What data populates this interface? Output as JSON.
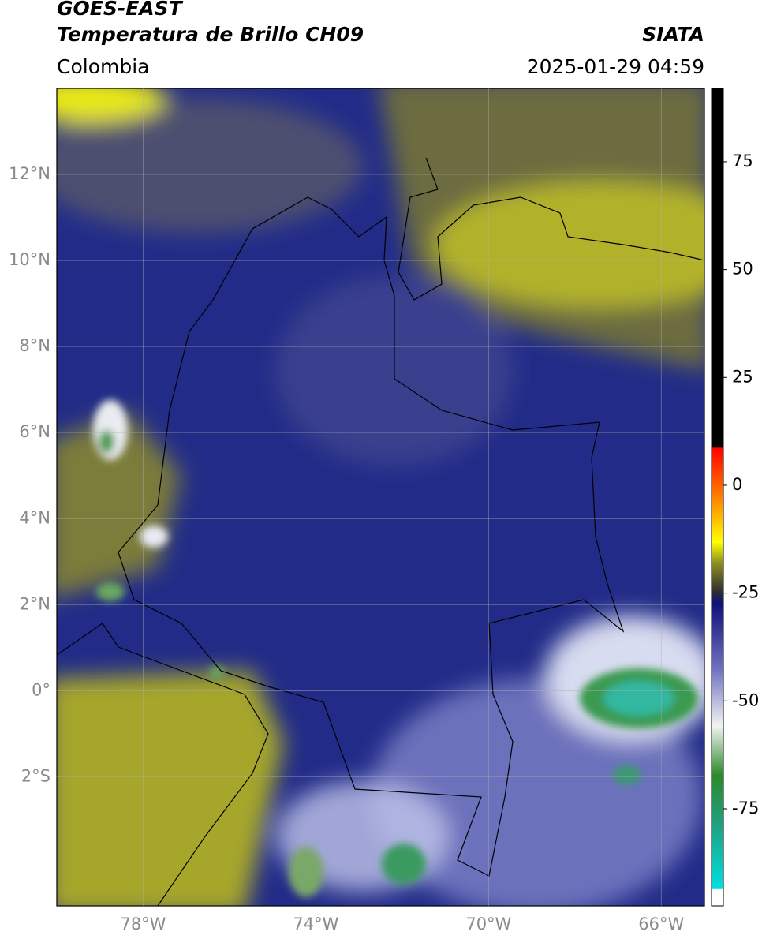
{
  "header": {
    "satellite": "GOES-EAST",
    "product": "Temperatura de Brillo CH09",
    "source": "SIATA",
    "region": "Colombia",
    "datetime": "2025-01-29 04:59"
  },
  "map": {
    "lon_range": [
      -80,
      -65
    ],
    "lat_range": [
      -5,
      14
    ],
    "lon_ticks": [
      {
        "value": -78,
        "label": "78°W"
      },
      {
        "value": -74,
        "label": "74°W"
      },
      {
        "value": -70,
        "label": "70°W"
      },
      {
        "value": -66,
        "label": "66°W"
      }
    ],
    "lat_ticks": [
      {
        "value": 12,
        "label": "12°N"
      },
      {
        "value": 10,
        "label": "10°N"
      },
      {
        "value": 8,
        "label": "8°N"
      },
      {
        "value": 6,
        "label": "6°N"
      },
      {
        "value": 4,
        "label": "4°N"
      },
      {
        "value": 2,
        "label": "2°N"
      },
      {
        "value": 0,
        "label": "0°"
      },
      {
        "value": -2,
        "label": "2°S"
      }
    ]
  },
  "colorbar": {
    "range": [
      -97.5,
      92
    ],
    "ticks": [
      75,
      50,
      25,
      0,
      -25,
      -50,
      -75
    ]
  }
}
